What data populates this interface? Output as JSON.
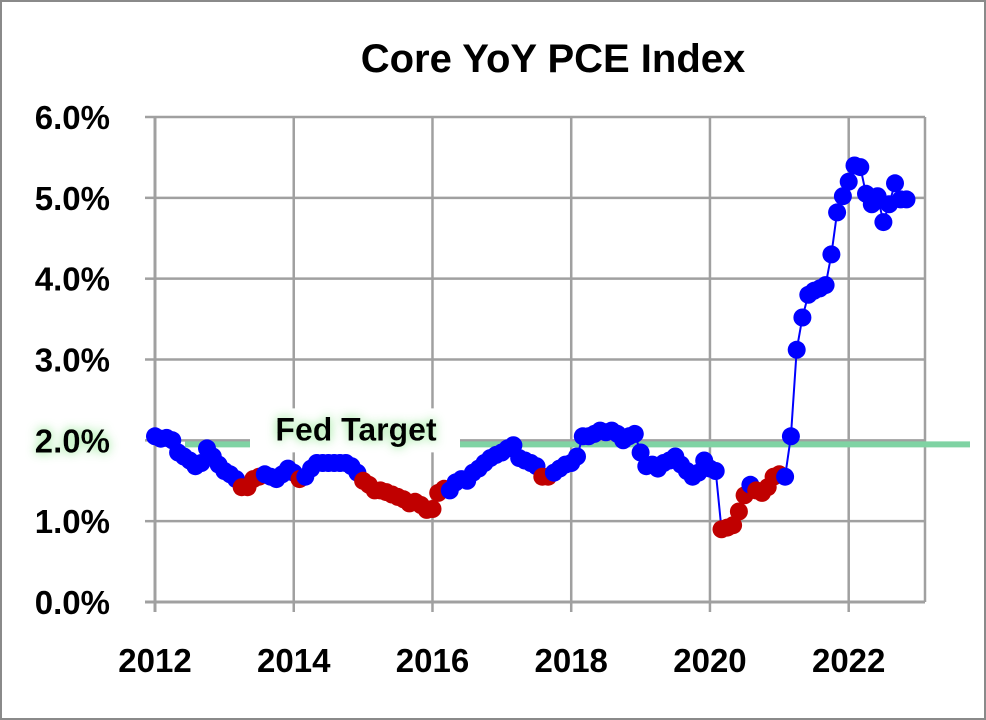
{
  "chart_data": {
    "type": "scatter",
    "title": "Core YoY PCE Index",
    "xlabel": "",
    "ylabel": "",
    "xlim": [
      2012,
      2023.1
    ],
    "ylim": [
      0,
      6
    ],
    "x_ticks": [
      "2012",
      "2014",
      "2016",
      "2018",
      "2020",
      "2022"
    ],
    "y_ticks": [
      "0.0%",
      "1.0%",
      "2.0%",
      "3.0%",
      "4.0%",
      "5.0%",
      "6.0%"
    ],
    "grid": true,
    "legend": "none",
    "reference_line": {
      "label": "Fed Target",
      "value": 1.95,
      "color": "#7fd3a3"
    },
    "colors": {
      "above_trend": "#0000ff",
      "below_trend": "#c00000",
      "line": "#0000ff",
      "grid": "#a0a0a0"
    },
    "series": [
      {
        "x": [
          2012.0,
          2012.083,
          2012.167,
          2012.25,
          2012.333,
          2012.417,
          2012.5,
          2012.583,
          2012.667,
          2012.75,
          2012.833,
          2012.917,
          2013.0,
          2013.083,
          2013.167,
          2013.25,
          2013.333,
          2013.417,
          2013.5,
          2013.583,
          2013.667,
          2013.75,
          2013.833,
          2013.917,
          2014.0,
          2014.083,
          2014.167,
          2014.25,
          2014.333,
          2014.417,
          2014.5,
          2014.583,
          2014.667,
          2014.75,
          2014.833,
          2014.917,
          2015.0,
          2015.083,
          2015.167,
          2015.25,
          2015.333,
          2015.417,
          2015.5,
          2015.583,
          2015.667,
          2015.75,
          2015.833,
          2015.917,
          2016.0,
          2016.083,
          2016.167,
          2016.25,
          2016.333,
          2016.417,
          2016.5,
          2016.583,
          2016.667,
          2016.75,
          2016.833,
          2016.917,
          2017.0,
          2017.083,
          2017.167,
          2017.25,
          2017.333,
          2017.417,
          2017.5,
          2017.583,
          2017.667,
          2017.75,
          2017.833,
          2017.917,
          2018.0,
          2018.083,
          2018.167,
          2018.25,
          2018.333,
          2018.417,
          2018.5,
          2018.583,
          2018.667,
          2018.75,
          2018.833,
          2018.917,
          2019.0,
          2019.083,
          2019.167,
          2019.25,
          2019.333,
          2019.417,
          2019.5,
          2019.583,
          2019.667,
          2019.75,
          2019.833,
          2019.917,
          2020.0,
          2020.083,
          2020.167,
          2020.25,
          2020.333,
          2020.417,
          2020.5,
          2020.583,
          2020.667,
          2020.75,
          2020.833,
          2020.917,
          2021.0,
          2021.083,
          2021.167,
          2021.25,
          2021.333,
          2021.417,
          2021.5,
          2021.583,
          2021.667,
          2021.75,
          2021.833,
          2021.917,
          2022.0,
          2022.083,
          2022.167,
          2022.25,
          2022.333,
          2022.417,
          2022.5,
          2022.583,
          2022.667,
          2022.75,
          2022.833
        ],
        "y": [
          2.05,
          2.02,
          2.03,
          2.0,
          1.85,
          1.8,
          1.75,
          1.68,
          1.72,
          1.9,
          1.8,
          1.7,
          1.62,
          1.58,
          1.52,
          1.42,
          1.42,
          1.52,
          1.55,
          1.58,
          1.55,
          1.52,
          1.58,
          1.65,
          1.6,
          1.52,
          1.55,
          1.65,
          1.72,
          1.72,
          1.72,
          1.72,
          1.72,
          1.72,
          1.68,
          1.6,
          1.5,
          1.45,
          1.38,
          1.38,
          1.36,
          1.33,
          1.3,
          1.27,
          1.22,
          1.24,
          1.2,
          1.14,
          1.15,
          1.35,
          1.4,
          1.38,
          1.48,
          1.52,
          1.5,
          1.6,
          1.65,
          1.72,
          1.78,
          1.82,
          1.85,
          1.9,
          1.94,
          1.78,
          1.75,
          1.72,
          1.68,
          1.55,
          1.55,
          1.6,
          1.65,
          1.7,
          1.72,
          1.8,
          2.05,
          2.05,
          2.08,
          2.12,
          2.1,
          2.12,
          2.08,
          2.0,
          2.05,
          2.08,
          1.85,
          1.68,
          1.7,
          1.65,
          1.72,
          1.75,
          1.8,
          1.7,
          1.62,
          1.55,
          1.6,
          1.75,
          1.65,
          1.62,
          0.9,
          0.92,
          0.95,
          1.12,
          1.32,
          1.45,
          1.38,
          1.35,
          1.42,
          1.55,
          1.58,
          1.55,
          2.05,
          3.12,
          3.52,
          3.8,
          3.85,
          3.88,
          3.92,
          4.3,
          4.82,
          5.02,
          5.2,
          5.4,
          5.38,
          5.05,
          4.92,
          5.02,
          4.7,
          4.92,
          5.18,
          4.98,
          4.98
        ],
        "color_class": [
          0,
          0,
          0,
          0,
          0,
          0,
          0,
          0,
          0,
          0,
          0,
          0,
          0,
          0,
          0,
          1,
          1,
          1,
          1,
          0,
          0,
          0,
          0,
          0,
          0,
          1,
          0,
          0,
          0,
          0,
          0,
          0,
          0,
          0,
          0,
          0,
          1,
          1,
          1,
          1,
          1,
          1,
          1,
          1,
          1,
          1,
          1,
          1,
          1,
          1,
          1,
          0,
          0,
          0,
          0,
          0,
          0,
          0,
          0,
          0,
          0,
          0,
          0,
          0,
          0,
          0,
          0,
          1,
          1,
          0,
          0,
          0,
          0,
          0,
          0,
          0,
          0,
          0,
          0,
          0,
          0,
          0,
          0,
          0,
          0,
          0,
          0,
          0,
          0,
          0,
          0,
          0,
          0,
          0,
          0,
          0,
          0,
          0,
          1,
          1,
          1,
          1,
          1,
          0,
          1,
          1,
          1,
          1,
          1,
          0,
          0,
          0,
          0,
          0,
          0,
          0,
          0,
          0,
          0,
          0,
          0,
          0,
          0,
          0,
          0,
          0,
          0,
          0,
          0,
          0,
          0
        ]
      }
    ]
  }
}
